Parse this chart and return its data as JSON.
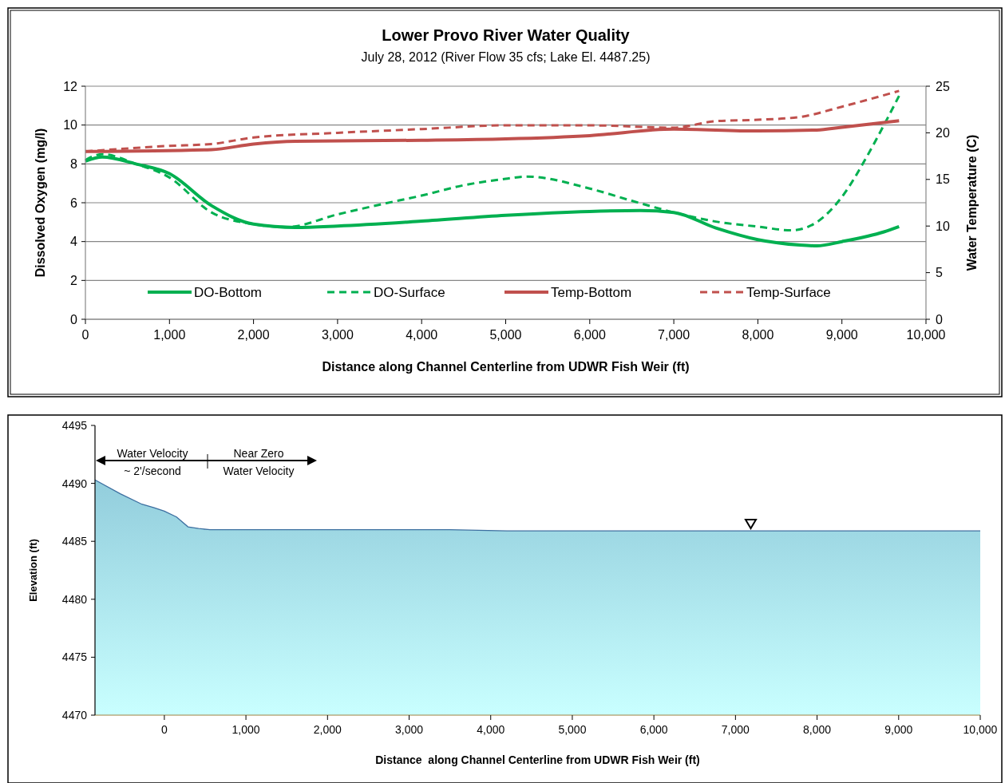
{
  "chart_data": [
    {
      "type": "line",
      "title": "Lower Provo River Water Quality",
      "subtitle": "July 28, 2012 (River Flow 35 cfs; Lake El. 4487.25)",
      "xlabel": "Distance along Channel Centerline from UDWR Fish Weir (ft)",
      "ylabel": "Dissolved Oxygen (mg/l)",
      "y2label": "Water Temperature (C)",
      "xlim": [
        0,
        10000
      ],
      "xticks": [
        0,
        {
          "value": 1000,
          "label": "1,000"
        },
        {
          "value": 2000,
          "label": "2,000"
        },
        {
          "value": 3000,
          "label": "3,000"
        },
        {
          "value": 4000,
          "label": "4,000"
        },
        {
          "value": 5000,
          "label": "5,000"
        },
        {
          "value": 6000,
          "label": "6,000"
        },
        {
          "value": 7000,
          "label": "7,000"
        },
        {
          "value": 8000,
          "label": "8,000"
        },
        {
          "value": 9000,
          "label": "9,000"
        },
        {
          "value": 10000,
          "label": "10,000"
        }
      ],
      "ylim": [
        0,
        12
      ],
      "yticks": [
        0,
        2,
        4,
        6,
        8,
        10,
        12
      ],
      "y2lim": [
        0,
        25
      ],
      "y2ticks": [
        0,
        5,
        10,
        15,
        20,
        25
      ],
      "grid": "y",
      "legend": "bottom",
      "series": [
        {
          "name": "DO-Bottom",
          "color": "#00b050",
          "line_style": "solid",
          "x": [
            0,
            200,
            600,
            1000,
            1500,
            2000,
            2500,
            3000,
            4000,
            5000,
            6000,
            6600,
            7000,
            7500,
            8000,
            8500,
            8700,
            9000,
            9500,
            9680
          ],
          "values": [
            8.14,
            8.35,
            8.0,
            7.5,
            5.85,
            4.9,
            4.73,
            4.8,
            5.05,
            5.35,
            5.55,
            5.6,
            5.5,
            4.7,
            4.1,
            3.82,
            3.78,
            4.0,
            4.5,
            4.77
          ]
        },
        {
          "name": "DO-Surface",
          "color": "#00b050",
          "line_style": "dashed",
          "x": [
            0,
            200,
            600,
            1000,
            1500,
            2000,
            2400,
            3000,
            3500,
            4000,
            4500,
            5000,
            5250,
            6000,
            6500,
            7000,
            7500,
            8000,
            8400,
            8700,
            9000,
            9300,
            9500,
            9680
          ],
          "values": [
            8.2,
            8.5,
            8.0,
            7.3,
            5.5,
            4.9,
            4.75,
            5.4,
            5.9,
            6.37,
            6.9,
            7.23,
            7.35,
            6.73,
            6.1,
            5.5,
            5.03,
            4.77,
            4.58,
            5.0,
            6.3,
            8.4,
            10.0,
            11.5
          ]
        },
        {
          "name": "Temp-Bottom",
          "color": "#c0504d",
          "line_style": "solid",
          "axis": "y2",
          "x": [
            0,
            1500,
            2000,
            2500,
            4000,
            5000,
            6000,
            7000,
            8000,
            8700,
            9000,
            9680
          ],
          "values": [
            18.0,
            18.2,
            18.8,
            19.1,
            19.2,
            19.35,
            19.7,
            20.4,
            20.2,
            20.3,
            20.6,
            21.3
          ]
        },
        {
          "name": "Temp-Surface",
          "color": "#c0504d",
          "line_style": "dashed",
          "axis": "y2",
          "x": [
            0,
            1000,
            1500,
            2000,
            3000,
            4000,
            5000,
            6000,
            7000,
            7500,
            8000,
            8500,
            9000,
            9680
          ],
          "values": [
            18.0,
            18.6,
            18.8,
            19.5,
            20.0,
            20.4,
            20.8,
            20.8,
            20.55,
            21.25,
            21.4,
            21.7,
            22.8,
            24.5
          ]
        }
      ]
    },
    {
      "type": "area",
      "xlabel": "Distance  along Channel Centerline from UDWR Fish Weir (ft)",
      "ylabel": "Elevation (ft)",
      "xlim": [
        -850,
        10000
      ],
      "xticks": [
        0,
        {
          "value": 1000,
          "label": "1,000"
        },
        {
          "value": 2000,
          "label": "2,000"
        },
        {
          "value": 3000,
          "label": "3,000"
        },
        {
          "value": 4000,
          "label": "4,000"
        },
        {
          "value": 5000,
          "label": "5,000"
        },
        {
          "value": 6000,
          "label": "6,000"
        },
        {
          "value": 7000,
          "label": "7,000"
        },
        {
          "value": 8000,
          "label": "8,000"
        },
        {
          "value": 9000,
          "label": "9,000"
        },
        {
          "value": 10000,
          "label": "10,000"
        }
      ],
      "ylim": [
        4470,
        4495
      ],
      "yticks": [
        4470,
        4475,
        4480,
        4485,
        4490,
        4495
      ],
      "annotations": [
        "Water Velocity",
        "~ 2'/second",
        "Near Zero",
        "Water Velocity"
      ],
      "series": [
        {
          "color": "#92cddc",
          "x": [
            -850,
            -540,
            -275,
            -125,
            0,
            150,
            290,
            420,
            560,
            3500,
            4200,
            10000
          ],
          "values": [
            4490.3,
            4489.1,
            4488.2,
            4487.9,
            4487.6,
            4487.1,
            4486.25,
            4486.1,
            4486.0,
            4486.0,
            4485.9,
            4485.9
          ]
        }
      ]
    }
  ]
}
